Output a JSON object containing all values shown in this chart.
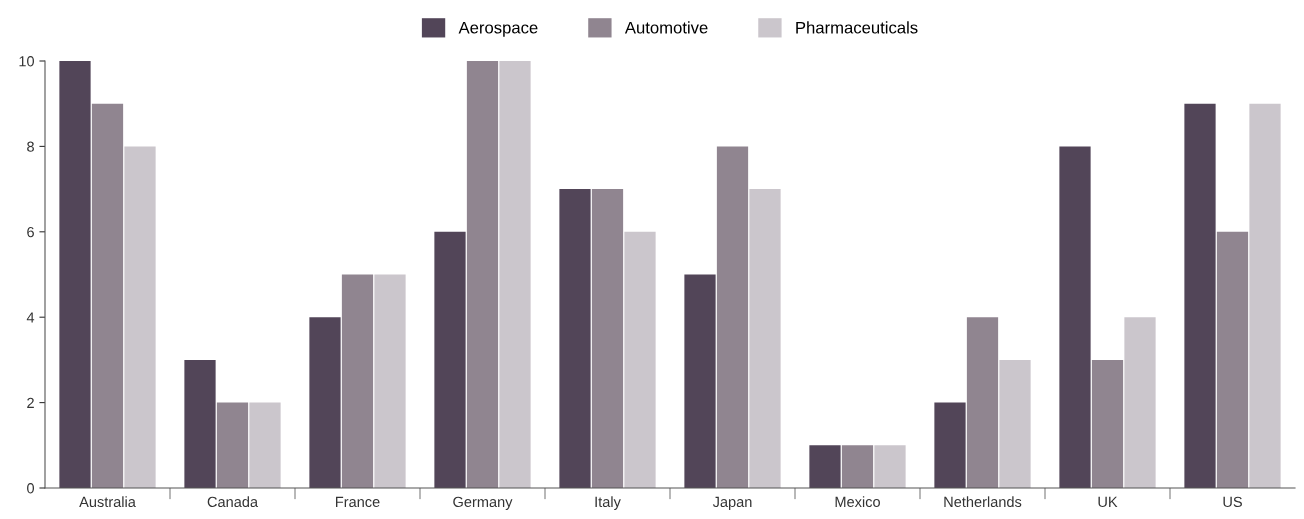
{
  "chart_data": {
    "type": "bar",
    "categories": [
      "Australia",
      "Canada",
      "France",
      "Germany",
      "Italy",
      "Japan",
      "Mexico",
      "Netherlands",
      "UK",
      "US"
    ],
    "series": [
      {
        "name": "Aerospace",
        "color": "#524558",
        "values": [
          10,
          3,
          4,
          6,
          7,
          5,
          1,
          2,
          8,
          9
        ]
      },
      {
        "name": "Automotive",
        "color": "#908590",
        "values": [
          9,
          2,
          5,
          10,
          7,
          8,
          1,
          4,
          3,
          6
        ]
      },
      {
        "name": "Pharmaceuticals",
        "color": "#cbc6cc",
        "values": [
          8,
          2,
          5,
          10,
          6,
          7,
          1,
          3,
          4,
          9
        ]
      }
    ],
    "ylim": [
      0,
      10
    ],
    "yticks": [
      0,
      2,
      4,
      6,
      8,
      10
    ],
    "grid": false,
    "legend": "top"
  }
}
